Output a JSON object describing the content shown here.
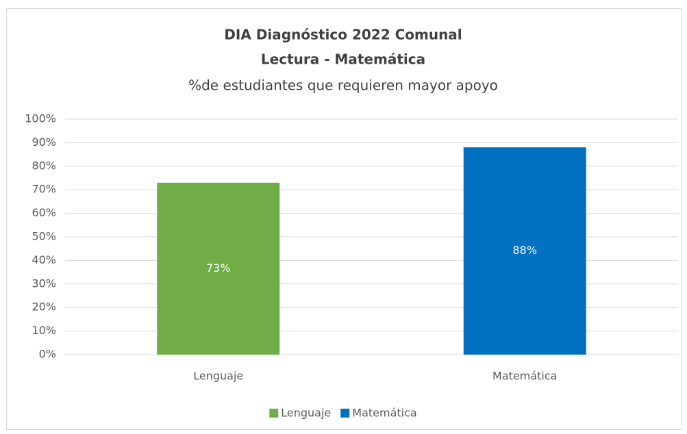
{
  "chart_data": {
    "type": "bar",
    "title": "DIA Diagnóstico 2022 Comunal",
    "subtitle": "Lectura - Matemática",
    "y_label": "%de estudiantes que requieren mayor apoyo",
    "categories": [
      "Lenguaje",
      "Matemática"
    ],
    "series": [
      {
        "name": "Lenguaje",
        "color": "#70ad47",
        "values": [
          73,
          null
        ],
        "value_labels": [
          "73%",
          null
        ]
      },
      {
        "name": "Matemática",
        "color": "#0070c0",
        "values": [
          null,
          88
        ],
        "value_labels": [
          null,
          "88%"
        ]
      }
    ],
    "ylim": [
      0,
      100
    ],
    "yticks": [
      {
        "value": 0,
        "label": "0%"
      },
      {
        "value": 10,
        "label": "10%"
      },
      {
        "value": 20,
        "label": "20%"
      },
      {
        "value": 30,
        "label": "30%"
      },
      {
        "value": 40,
        "label": "40%"
      },
      {
        "value": 50,
        "label": "50%"
      },
      {
        "value": 60,
        "label": "60%"
      },
      {
        "value": 70,
        "label": "70%"
      },
      {
        "value": 80,
        "label": "80%"
      },
      {
        "value": 90,
        "label": "90%"
      },
      {
        "value": 100,
        "label": "100%"
      }
    ],
    "grid": true,
    "legend": "bottom"
  }
}
